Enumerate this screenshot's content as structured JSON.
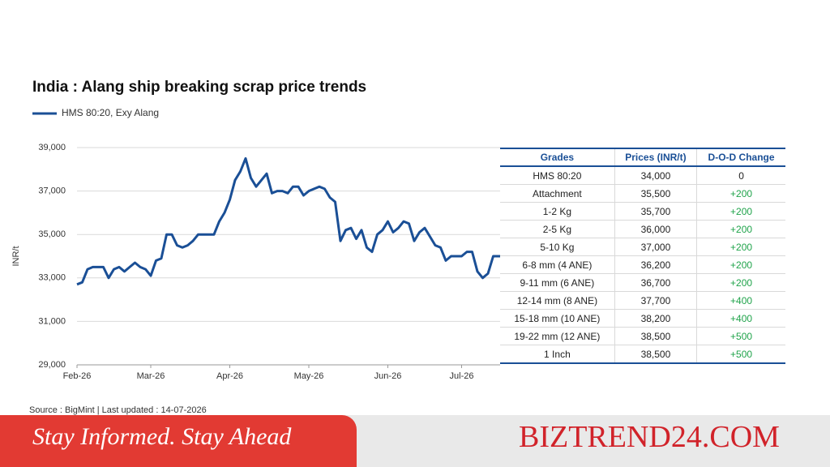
{
  "chart_data": {
    "type": "line",
    "title": "India : Alang ship breaking scrap price trends",
    "ylabel": "INR/t",
    "categories": [
      "Feb-26",
      null,
      null,
      null,
      null,
      null,
      null,
      null,
      null,
      null,
      null,
      null,
      null,
      null,
      "Mar-26",
      null,
      null,
      null,
      null,
      null,
      null,
      null,
      null,
      null,
      null,
      null,
      null,
      null,
      null,
      "Apr-26",
      null,
      null,
      null,
      null,
      null,
      null,
      null,
      null,
      null,
      null,
      null,
      null,
      null,
      null,
      "May-26",
      null,
      null,
      null,
      null,
      null,
      null,
      null,
      null,
      null,
      null,
      null,
      null,
      null,
      null,
      "Jun-26",
      null,
      null,
      null,
      null,
      null,
      null,
      null,
      null,
      null,
      null,
      null,
      null,
      null,
      "Jul-26",
      null,
      null,
      null,
      null,
      null,
      null,
      null,
      null
    ],
    "series": [
      {
        "name": "HMS 80:20, Exy Alang",
        "color": "#1a4f96",
        "values": [
          32700,
          32800,
          33400,
          33500,
          33500,
          33500,
          33000,
          33400,
          33500,
          33300,
          33500,
          33700,
          33500,
          33400,
          33100,
          33800,
          33900,
          35000,
          35000,
          34500,
          34400,
          34500,
          34700,
          35000,
          35000,
          35000,
          35000,
          35600,
          36000,
          36600,
          37500,
          37900,
          38500,
          37600,
          37200,
          37500,
          37800,
          36900,
          37000,
          37000,
          36900,
          37200,
          37200,
          36800,
          37000,
          37100,
          37200,
          37100,
          36700,
          36500,
          34700,
          35200,
          35300,
          34800,
          35200,
          34400,
          34200,
          35000,
          35200,
          35600,
          35100,
          35300,
          35600,
          35500,
          34700,
          35100,
          35300,
          34900,
          34500,
          34400,
          33800,
          34000,
          34000,
          34000,
          34200,
          34200,
          33300,
          33000,
          33200,
          34000,
          34000,
          34000
        ]
      }
    ],
    "ylim": [
      29000,
      39000
    ],
    "yticks": [
      {
        "value": 29000,
        "label": "29,000"
      },
      {
        "value": 31000,
        "label": "31,000"
      },
      {
        "value": 33000,
        "label": "33,000"
      },
      {
        "value": 35000,
        "label": "35,000"
      },
      {
        "value": 37000,
        "label": "37,000"
      },
      {
        "value": 39000,
        "label": "39,000"
      }
    ],
    "grid": true,
    "legend": "top-left"
  },
  "table": {
    "columns": [
      "Grades",
      "Prices (INR/t)",
      "D-O-D Change"
    ],
    "rows": [
      [
        "HMS 80:20",
        "34,000",
        "0"
      ],
      [
        "Attachment",
        "35,500",
        "+200"
      ],
      [
        "1-2 Kg",
        "35,700",
        "+200"
      ],
      [
        "2-5 Kg",
        "36,000",
        "+200"
      ],
      [
        "5-10 Kg",
        "37,000",
        "+200"
      ],
      [
        "6-8 mm (4 ANE)",
        "36,200",
        "+200"
      ],
      [
        "9-11 mm (6 ANE)",
        "36,700",
        "+200"
      ],
      [
        "12-14 mm (8 ANE)",
        "37,700",
        "+400"
      ],
      [
        "15-18 mm (10 ANE)",
        "38,200",
        "+400"
      ],
      [
        "19-22 mm (12 ANE)",
        "38,500",
        "+500"
      ],
      [
        "1 Inch",
        "38,500",
        "+500"
      ]
    ]
  },
  "source": "Source : BigMint | Last updated : 14-07-2026",
  "banner": {
    "tagline": "Stay Informed. Stay Ahead",
    "brand": "BIZTREND24.COM"
  }
}
